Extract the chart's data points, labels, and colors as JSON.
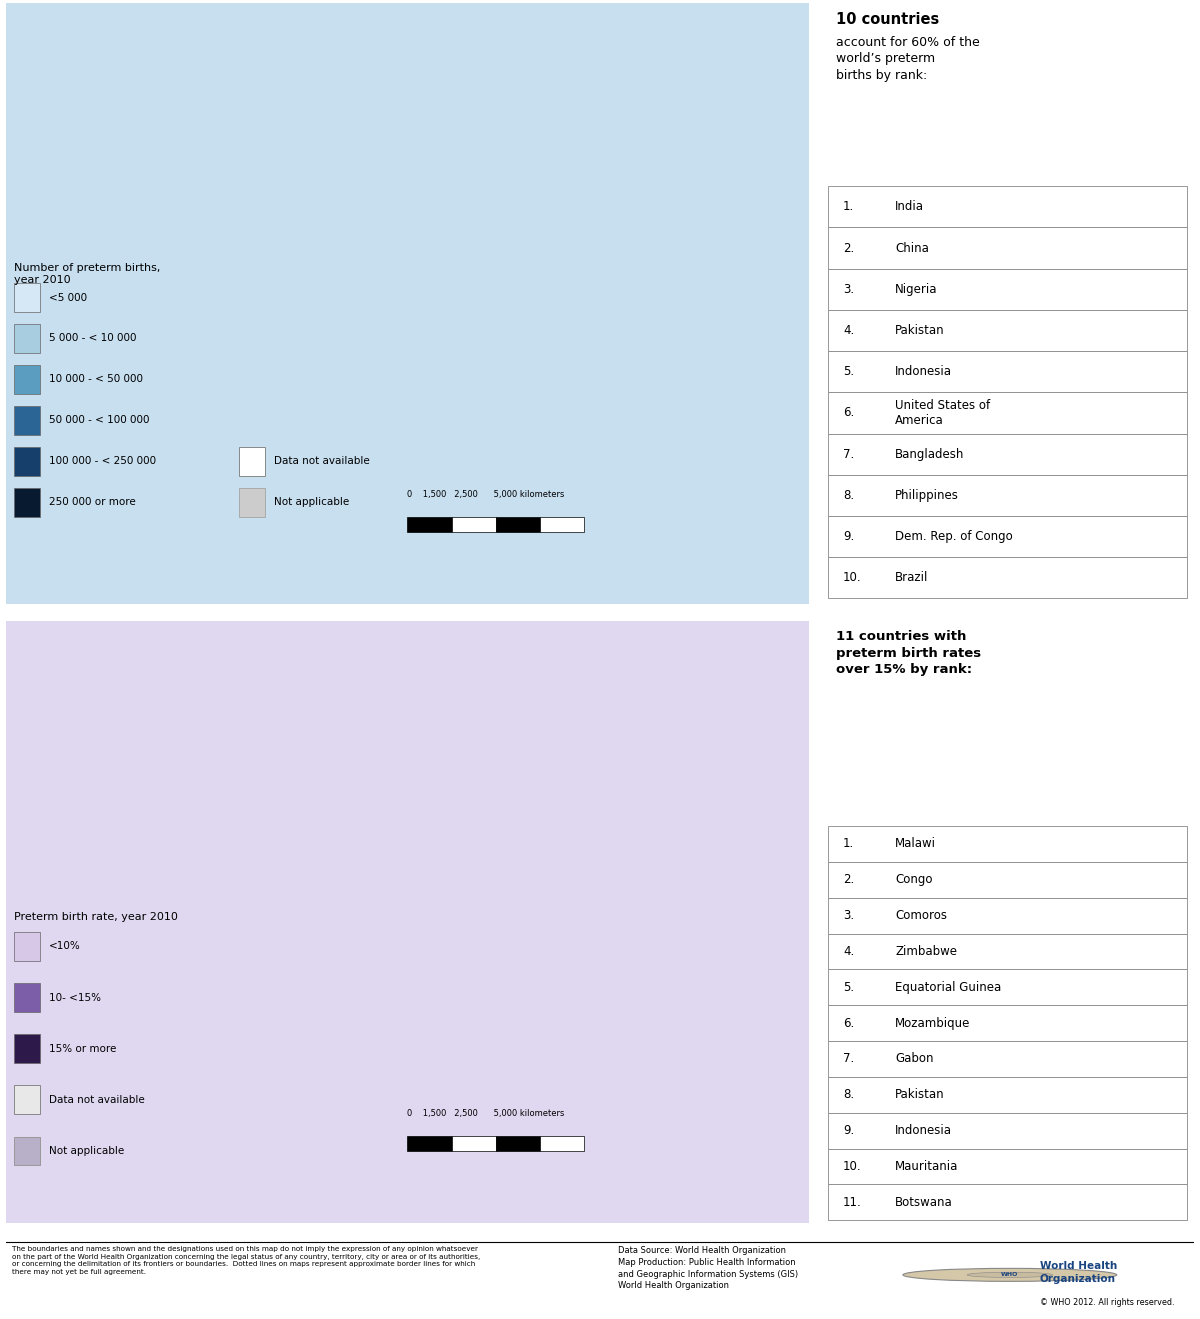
{
  "top_title": "10 countries",
  "top_subtitle": "account for 60% of\nthe world’s preterm\nbirths by rank:",
  "top_countries": [
    {
      "num": "1.",
      "name": "India"
    },
    {
      "num": "2.",
      "name": "China"
    },
    {
      "num": "3.",
      "name": "Nigeria"
    },
    {
      "num": "4.",
      "name": "Pakistan"
    },
    {
      "num": "5.",
      "name": "Indonesia"
    },
    {
      "num": "6.",
      "name": "United States of\n      America"
    },
    {
      "num": "7.",
      "name": "Bangladesh"
    },
    {
      "num": "8.",
      "name": "Philippines"
    },
    {
      "num": "9.",
      "name": "Dem. Rep. of Congo"
    },
    {
      "num": "10.",
      "name": "Brazil"
    }
  ],
  "bottom_title": "11 countries with\npreterm birth rates\nover 15% by rank:",
  "bottom_countries": [
    {
      "num": "1.",
      "name": "Malawi"
    },
    {
      "num": "2.",
      "name": "Congo"
    },
    {
      "num": "3.",
      "name": "Comoros"
    },
    {
      "num": "4.",
      "name": "Zimbabwe"
    },
    {
      "num": "5.",
      "name": "Equatorial Guinea"
    },
    {
      "num": "6.",
      "name": "Mozambique"
    },
    {
      "num": "7.",
      "name": "Gabon"
    },
    {
      "num": "8.",
      "name": "Pakistan"
    },
    {
      "num": "9.",
      "name": "Indonesia"
    },
    {
      "num": "10.",
      "name": "Mauritania"
    },
    {
      "num": "11.",
      "name": "Botswana"
    }
  ],
  "top_legend_title": "Number of preterm births,\nyear 2010",
  "top_legend_items": [
    {
      "label": "<5 000",
      "color": "#d6e8f5"
    },
    {
      "label": "5 000 - < 10 000",
      "color": "#a8cce0"
    },
    {
      "label": "10 000 - < 50 000",
      "color": "#5b9dc0"
    },
    {
      "label": "50 000 - < 100 000",
      "color": "#2b6595"
    },
    {
      "label": "100 000 - < 250 000",
      "color": "#163f6b"
    },
    {
      "label": "250 000 or more",
      "color": "#071a30"
    }
  ],
  "top_legend_extra": [
    {
      "label": "Data not available",
      "color": "#ffffff",
      "edgecolor": "#888888"
    },
    {
      "label": "Not applicable",
      "color": "#cccccc",
      "edgecolor": "#aaaaaa"
    }
  ],
  "bottom_legend_title": "Preterm birth rate, year 2010",
  "bottom_legend_items": [
    {
      "label": "<10%",
      "color": "#d8c8e8"
    },
    {
      "label": "10- <15%",
      "color": "#7b5ea7"
    },
    {
      "label": "15% or more",
      "color": "#2d1a4a"
    }
  ],
  "bottom_legend_extra": [
    {
      "label": "Data not available",
      "color": "#e8e8e8",
      "edgecolor": "#888888"
    },
    {
      "label": "Not applicable",
      "color": "#b8b0c8",
      "edgecolor": "#999999"
    }
  ],
  "footer_left": "The boundaries and names shown and the designations used on this map do not imply the expression of any opinion whatsoever\non the part of the World Health Organization concerning the legal status of any country, territory, city or area or of its authorities,\nor concerning the delimitation of its frontiers or boundaries.  Dotted lines on maps represent approximate border lines for which\nthere may not yet be full agreement.",
  "footer_center": "Data Source: World Health Organization\nMap Production: Public Health Information\nand Geographic Information Systems (GIS)\nWorld Health Organization",
  "footer_right": "© WHO 2012. All rights reserved.",
  "bg_color": "#ffffff",
  "ocean_color_top": "#c8dff0",
  "ocean_color_bot": "#e0d8f0",
  "top_country_colors": {
    "India": "#071a30",
    "China": "#071a30",
    "United States of America": "#071a30",
    "Nigeria": "#071a30",
    "Pakistan": "#071a30",
    "Bangladesh": "#071a30",
    "Indonesia": "#071a30",
    "Brazil": "#071a30",
    "Dem. Rep. of the Congo": "#071a30",
    "Ethiopia": "#163f6b",
    "Philippines": "#163f6b",
    "Tanzania": "#163f6b",
    "Kenya": "#163f6b",
    "Uganda": "#163f6b",
    "Sudan": "#163f6b",
    "Angola": "#163f6b",
    "Mali": "#163f6b",
    "Niger": "#163f6b",
    "Cameroon": "#163f6b",
    "Chad": "#163f6b",
    "Mozambique": "#163f6b",
    "Madagascar": "#163f6b",
    "Ghana": "#163f6b",
    "Burkina Faso": "#163f6b",
    "Ivory Coast": "#163f6b",
    "Malawi": "#163f6b",
    "Rwanda": "#163f6b",
    "Benin": "#163f6b",
    "Zimbabwe": "#163f6b",
    "Senegal": "#163f6b",
    "Zambia": "#163f6b",
    "Afghanistan": "#163f6b",
    "Yemen": "#163f6b",
    "Iraq": "#163f6b",
    "Myanmar": "#163f6b",
    "Vietnam": "#163f6b",
    "Mexico": "#163f6b",
    "Argentina": "#163f6b",
    "Russia": "#163f6b",
    "South Africa": "#2b6595",
    "Saudi Arabia": "#2b6595",
    "Morocco": "#2b6595",
    "Algeria": "#2b6595",
    "Egypt": "#2b6595",
    "Somalia": "#2b6595",
    "South Sudan": "#2b6595",
    "Central African Rep.": "#2b6595",
    "Togo": "#2b6595",
    "Guinea": "#2b6595",
    "Sierra Leone": "#2b6595",
    "Eritrea": "#2b6595",
    "Burundi": "#2b6595",
    "Nepal": "#2b6595",
    "Cambodia": "#2b6595",
    "North Korea": "#2b6595",
    "South Korea": "#2b6595",
    "Thailand": "#2b6595",
    "Malaysia": "#2b6595",
    "Sri Lanka": "#2b6595",
    "Venezuela": "#2b6595",
    "Colombia": "#2b6595",
    "Peru": "#2b6595",
    "Bolivia": "#2b6595",
    "Ecuador": "#2b6595",
    "Paraguay": "#2b6595",
    "Cuba": "#2b6595",
    "Norway": "#5b9dc0",
    "Sweden": "#5b9dc0",
    "Finland": "#5b9dc0",
    "Poland": "#5b9dc0",
    "Germany": "#5b9dc0",
    "France": "#5b9dc0",
    "Spain": "#5b9dc0",
    "Italy": "#5b9dc0",
    "Ukraine": "#5b9dc0",
    "Turkey": "#5b9dc0",
    "Iran": "#5b9dc0",
    "Syria": "#5b9dc0",
    "Jordan": "#5b9dc0",
    "Tunisia": "#5b9dc0",
    "Japan": "#5b9dc0",
    "Australia": "#5b9dc0",
    "New Zealand": "#5b9dc0",
    "Canada": "#5b9dc0",
    "Kazakhstan": "#5b9dc0",
    "Uzbekistan": "#5b9dc0",
    "Chile": "#5b9dc0",
    "Haiti": "#5b9dc0",
    "Guatemala": "#5b9dc0",
    "Honduras": "#5b9dc0",
    "Belgium": "#a8cce0",
    "Netherlands": "#a8cce0",
    "Switzerland": "#a8cce0",
    "Austria": "#a8cce0",
    "Czech Rep.": "#a8cce0",
    "Romania": "#a8cce0",
    "Hungary": "#a8cce0",
    "Portugal": "#a8cce0",
    "Greece": "#a8cce0",
    "Denmark": "#a8cce0",
    "United Kingdom": "#a8cce0"
  },
  "bot_country_colors": {
    "Malawi": "#2d1a4a",
    "Congo": "#2d1a4a",
    "Comoros": "#2d1a4a",
    "Zimbabwe": "#2d1a4a",
    "Equatorial Guinea": "#2d1a4a",
    "Mozambique": "#2d1a4a",
    "Gabon": "#2d1a4a",
    "Pakistan": "#2d1a4a",
    "Indonesia": "#2d1a4a",
    "Mauritania": "#2d1a4a",
    "Botswana": "#2d1a4a",
    "Nigeria": "#2d1a4a",
    "Central African Rep.": "#2d1a4a",
    "South Sudan": "#2d1a4a",
    "Cameroon": "#2d1a4a",
    "Chad": "#2d1a4a",
    "Niger": "#2d1a4a",
    "Mali": "#2d1a4a",
    "Burkina Faso": "#2d1a4a",
    "Guinea": "#2d1a4a",
    "Sierra Leone": "#2d1a4a",
    "Guinea-Bissau": "#2d1a4a",
    "Gambia": "#2d1a4a",
    "Senegal": "#2d1a4a",
    "Togo": "#2d1a4a",
    "Benin": "#2d1a4a",
    "Ghana": "#2d1a4a",
    "Ivory Coast": "#2d1a4a",
    "Liberia": "#2d1a4a",
    "Somalia": "#2d1a4a",
    "Eritrea": "#2d1a4a",
    "Ethiopia": "#2d1a4a",
    "Tanzania": "#2d1a4a",
    "Uganda": "#2d1a4a",
    "Kenya": "#2d1a4a",
    "Rwanda": "#2d1a4a",
    "Burundi": "#2d1a4a",
    "Angola": "#2d1a4a",
    "Zambia": "#2d1a4a",
    "Madagascar": "#2d1a4a",
    "India": "#7b5ea7",
    "Bangladesh": "#7b5ea7",
    "Myanmar": "#7b5ea7",
    "Nepal": "#7b5ea7",
    "Afghanistan": "#7b5ea7",
    "Yemen": "#7b5ea7",
    "Iraq": "#7b5ea7",
    "Sudan": "#7b5ea7",
    "Egypt": "#7b5ea7",
    "Algeria": "#7b5ea7",
    "Morocco": "#7b5ea7",
    "Libya": "#7b5ea7",
    "Tunisia": "#7b5ea7",
    "United States of America": "#7b5ea7",
    "Brazil": "#7b5ea7",
    "Mexico": "#7b5ea7",
    "Philippines": "#7b5ea7",
    "Vietnam": "#7b5ea7",
    "Cambodia": "#7b5ea7",
    "Haiti": "#7b5ea7",
    "Guatemala": "#7b5ea7",
    "Venezuela": "#7b5ea7",
    "Colombia": "#7b5ea7",
    "Peru": "#7b5ea7",
    "Bolivia": "#7b5ea7",
    "Ecuador": "#7b5ea7",
    "Saudi Arabia": "#7b5ea7",
    "Iran": "#7b5ea7",
    "Syria": "#7b5ea7",
    "Jordan": "#7b5ea7",
    "Dem. Rep. of the Congo": "#7b5ea7",
    "Namibia": "#7b5ea7",
    "Lesotho": "#7b5ea7",
    "South Africa": "#7b5ea7",
    "Djibouti": "#7b5ea7",
    "China": "#d8c8e8",
    "Russia": "#d8c8e8",
    "Japan": "#d8c8e8",
    "South Korea": "#d8c8e8",
    "North Korea": "#d8c8e8",
    "Australia": "#d8c8e8",
    "Canada": "#d8c8e8",
    "France": "#d8c8e8",
    "Germany": "#d8c8e8",
    "United Kingdom": "#d8c8e8",
    "Italy": "#d8c8e8",
    "Spain": "#d8c8e8",
    "Poland": "#d8c8e8",
    "Ukraine": "#d8c8e8",
    "Turkey": "#d8c8e8",
    "Argentina": "#d8c8e8",
    "Chile": "#d8c8e8",
    "Uruguay": "#d8c8e8",
    "Norway": "#d8c8e8",
    "Sweden": "#d8c8e8",
    "Finland": "#d8c8e8",
    "Denmark": "#d8c8e8",
    "Netherlands": "#d8c8e8",
    "Belgium": "#d8c8e8",
    "Austria": "#d8c8e8",
    "Switzerland": "#d8c8e8",
    "Portugal": "#d8c8e8",
    "Greece": "#d8c8e8",
    "Romania": "#d8c8e8",
    "Hungary": "#d8c8e8",
    "Czech Rep.": "#d8c8e8",
    "Slovakia": "#d8c8e8",
    "Kazakhstan": "#d8c8e8",
    "Uzbekistan": "#d8c8e8",
    "Thailand": "#d8c8e8",
    "Malaysia": "#d8c8e8",
    "Sri Lanka": "#d8c8e8",
    "New Zealand": "#d8c8e8",
    "Cuba": "#d8c8e8",
    "Costa Rica": "#d8c8e8",
    "Panama": "#d8c8e8",
    "Paraguay": "#d8c8e8"
  }
}
